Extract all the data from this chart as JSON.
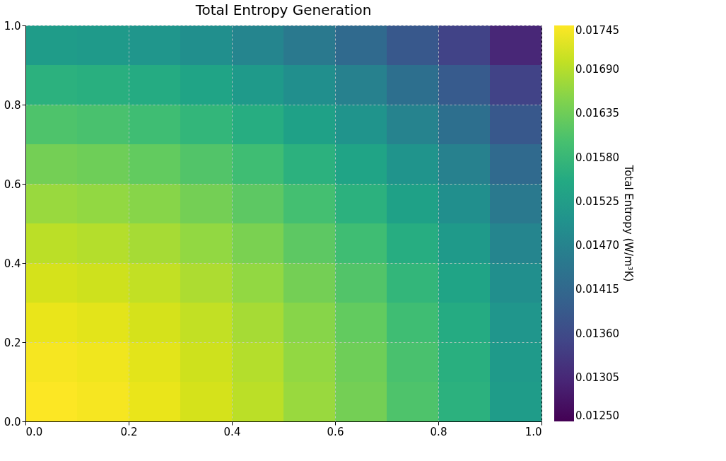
{
  "chart_data": {
    "type": "heatmap",
    "title": "Total Entropy Generation",
    "clabel": "Total Entropy (W/m³K)",
    "x": [
      0.05,
      0.15,
      0.25,
      0.35,
      0.45,
      0.55,
      0.65,
      0.75,
      0.85,
      0.95
    ],
    "cells": [
      [
        0.01523,
        0.01518,
        0.01509,
        0.01494,
        0.01474,
        0.0145,
        0.0142,
        0.01386,
        0.01347,
        0.01303
      ],
      [
        0.01567,
        0.01562,
        0.01553,
        0.01538,
        0.01518,
        0.01494,
        0.01464,
        0.0143,
        0.01391,
        0.01347
      ],
      [
        0.01607,
        0.01602,
        0.01592,
        0.01577,
        0.01558,
        0.01533,
        0.01504,
        0.01469,
        0.0143,
        0.01386
      ],
      [
        0.01641,
        0.01636,
        0.01626,
        0.01611,
        0.01592,
        0.01567,
        0.01538,
        0.01504,
        0.01464,
        0.0142
      ],
      [
        0.0167,
        0.01665,
        0.01656,
        0.01641,
        0.01621,
        0.01597,
        0.01567,
        0.01533,
        0.01494,
        0.0145
      ],
      [
        0.01695,
        0.0169,
        0.0168,
        0.01665,
        0.01646,
        0.01621,
        0.01592,
        0.01558,
        0.01518,
        0.01474
      ],
      [
        0.01714,
        0.01709,
        0.017,
        0.01685,
        0.01665,
        0.01641,
        0.01611,
        0.01577,
        0.01538,
        0.01494
      ],
      [
        0.01729,
        0.01724,
        0.01714,
        0.017,
        0.0168,
        0.01656,
        0.01626,
        0.01592,
        0.01553,
        0.01509
      ],
      [
        0.01739,
        0.01734,
        0.01724,
        0.01709,
        0.0169,
        0.01665,
        0.01636,
        0.01602,
        0.01562,
        0.01518
      ],
      [
        0.01744,
        0.01739,
        0.01729,
        0.01714,
        0.01695,
        0.0167,
        0.01641,
        0.01607,
        0.01567,
        0.01523
      ]
    ],
    "xlim": [
      0,
      1
    ],
    "ylim": [
      0,
      1
    ],
    "xticks": [
      {
        "value": 0,
        "label": "0.0"
      },
      {
        "value": 0.2,
        "label": "0.2"
      },
      {
        "value": 0.4,
        "label": "0.4"
      },
      {
        "value": 0.6,
        "label": "0.6"
      },
      {
        "value": 0.8,
        "label": "0.8"
      },
      {
        "value": 1,
        "label": "1.0"
      }
    ],
    "yticks": [
      {
        "value": 0,
        "label": "0.0"
      },
      {
        "value": 0.2,
        "label": "0.2"
      },
      {
        "value": 0.4,
        "label": "0.4"
      },
      {
        "value": 0.6,
        "label": "0.6"
      },
      {
        "value": 0.8,
        "label": "0.8"
      },
      {
        "value": 1,
        "label": "1.0"
      }
    ],
    "clim": [
      0.0125,
      0.01745
    ],
    "cticks": [
      {
        "value": 0.0125,
        "label": "0.01250"
      },
      {
        "value": 0.01305,
        "label": "0.01305"
      },
      {
        "value": 0.0136,
        "label": "0.01360"
      },
      {
        "value": 0.01415,
        "label": "0.01415"
      },
      {
        "value": 0.0147,
        "label": "0.01470"
      },
      {
        "value": 0.01525,
        "label": "0.01525"
      },
      {
        "value": 0.0158,
        "label": "0.01580"
      },
      {
        "value": 0.01635,
        "label": "0.01635"
      },
      {
        "value": 0.0169,
        "label": "0.01690"
      },
      {
        "value": 0.01745,
        "label": "0.01745"
      }
    ],
    "grid": true
  }
}
